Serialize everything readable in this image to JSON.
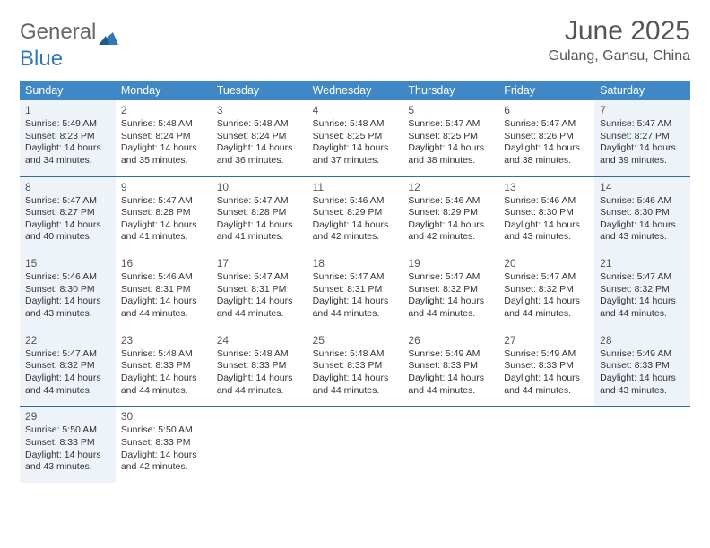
{
  "logo": {
    "text1": "General",
    "text2": "Blue"
  },
  "title": "June 2025",
  "location": "Gulang, Gansu, China",
  "colors": {
    "header_bg": "#3f88c5",
    "header_text": "#ffffff",
    "row_border": "#2e6ea3",
    "shaded_bg": "#edf3f8",
    "text": "#333333",
    "muted": "#555555"
  },
  "weekdays": [
    "Sunday",
    "Monday",
    "Tuesday",
    "Wednesday",
    "Thursday",
    "Friday",
    "Saturday"
  ],
  "weeks": [
    [
      {
        "n": "1",
        "shaded": true,
        "sr": "Sunrise: 5:49 AM",
        "ss": "Sunset: 8:23 PM",
        "d1": "Daylight: 14 hours",
        "d2": "and 34 minutes."
      },
      {
        "n": "2",
        "sr": "Sunrise: 5:48 AM",
        "ss": "Sunset: 8:24 PM",
        "d1": "Daylight: 14 hours",
        "d2": "and 35 minutes."
      },
      {
        "n": "3",
        "sr": "Sunrise: 5:48 AM",
        "ss": "Sunset: 8:24 PM",
        "d1": "Daylight: 14 hours",
        "d2": "and 36 minutes."
      },
      {
        "n": "4",
        "sr": "Sunrise: 5:48 AM",
        "ss": "Sunset: 8:25 PM",
        "d1": "Daylight: 14 hours",
        "d2": "and 37 minutes."
      },
      {
        "n": "5",
        "sr": "Sunrise: 5:47 AM",
        "ss": "Sunset: 8:25 PM",
        "d1": "Daylight: 14 hours",
        "d2": "and 38 minutes."
      },
      {
        "n": "6",
        "sr": "Sunrise: 5:47 AM",
        "ss": "Sunset: 8:26 PM",
        "d1": "Daylight: 14 hours",
        "d2": "and 38 minutes."
      },
      {
        "n": "7",
        "shaded": true,
        "sr": "Sunrise: 5:47 AM",
        "ss": "Sunset: 8:27 PM",
        "d1": "Daylight: 14 hours",
        "d2": "and 39 minutes."
      }
    ],
    [
      {
        "n": "8",
        "shaded": true,
        "sr": "Sunrise: 5:47 AM",
        "ss": "Sunset: 8:27 PM",
        "d1": "Daylight: 14 hours",
        "d2": "and 40 minutes."
      },
      {
        "n": "9",
        "sr": "Sunrise: 5:47 AM",
        "ss": "Sunset: 8:28 PM",
        "d1": "Daylight: 14 hours",
        "d2": "and 41 minutes."
      },
      {
        "n": "10",
        "sr": "Sunrise: 5:47 AM",
        "ss": "Sunset: 8:28 PM",
        "d1": "Daylight: 14 hours",
        "d2": "and 41 minutes."
      },
      {
        "n": "11",
        "sr": "Sunrise: 5:46 AM",
        "ss": "Sunset: 8:29 PM",
        "d1": "Daylight: 14 hours",
        "d2": "and 42 minutes."
      },
      {
        "n": "12",
        "sr": "Sunrise: 5:46 AM",
        "ss": "Sunset: 8:29 PM",
        "d1": "Daylight: 14 hours",
        "d2": "and 42 minutes."
      },
      {
        "n": "13",
        "sr": "Sunrise: 5:46 AM",
        "ss": "Sunset: 8:30 PM",
        "d1": "Daylight: 14 hours",
        "d2": "and 43 minutes."
      },
      {
        "n": "14",
        "shaded": true,
        "sr": "Sunrise: 5:46 AM",
        "ss": "Sunset: 8:30 PM",
        "d1": "Daylight: 14 hours",
        "d2": "and 43 minutes."
      }
    ],
    [
      {
        "n": "15",
        "shaded": true,
        "sr": "Sunrise: 5:46 AM",
        "ss": "Sunset: 8:30 PM",
        "d1": "Daylight: 14 hours",
        "d2": "and 43 minutes."
      },
      {
        "n": "16",
        "sr": "Sunrise: 5:46 AM",
        "ss": "Sunset: 8:31 PM",
        "d1": "Daylight: 14 hours",
        "d2": "and 44 minutes."
      },
      {
        "n": "17",
        "sr": "Sunrise: 5:47 AM",
        "ss": "Sunset: 8:31 PM",
        "d1": "Daylight: 14 hours",
        "d2": "and 44 minutes."
      },
      {
        "n": "18",
        "sr": "Sunrise: 5:47 AM",
        "ss": "Sunset: 8:31 PM",
        "d1": "Daylight: 14 hours",
        "d2": "and 44 minutes."
      },
      {
        "n": "19",
        "sr": "Sunrise: 5:47 AM",
        "ss": "Sunset: 8:32 PM",
        "d1": "Daylight: 14 hours",
        "d2": "and 44 minutes."
      },
      {
        "n": "20",
        "sr": "Sunrise: 5:47 AM",
        "ss": "Sunset: 8:32 PM",
        "d1": "Daylight: 14 hours",
        "d2": "and 44 minutes."
      },
      {
        "n": "21",
        "shaded": true,
        "sr": "Sunrise: 5:47 AM",
        "ss": "Sunset: 8:32 PM",
        "d1": "Daylight: 14 hours",
        "d2": "and 44 minutes."
      }
    ],
    [
      {
        "n": "22",
        "shaded": true,
        "sr": "Sunrise: 5:47 AM",
        "ss": "Sunset: 8:32 PM",
        "d1": "Daylight: 14 hours",
        "d2": "and 44 minutes."
      },
      {
        "n": "23",
        "sr": "Sunrise: 5:48 AM",
        "ss": "Sunset: 8:33 PM",
        "d1": "Daylight: 14 hours",
        "d2": "and 44 minutes."
      },
      {
        "n": "24",
        "sr": "Sunrise: 5:48 AM",
        "ss": "Sunset: 8:33 PM",
        "d1": "Daylight: 14 hours",
        "d2": "and 44 minutes."
      },
      {
        "n": "25",
        "sr": "Sunrise: 5:48 AM",
        "ss": "Sunset: 8:33 PM",
        "d1": "Daylight: 14 hours",
        "d2": "and 44 minutes."
      },
      {
        "n": "26",
        "sr": "Sunrise: 5:49 AM",
        "ss": "Sunset: 8:33 PM",
        "d1": "Daylight: 14 hours",
        "d2": "and 44 minutes."
      },
      {
        "n": "27",
        "sr": "Sunrise: 5:49 AM",
        "ss": "Sunset: 8:33 PM",
        "d1": "Daylight: 14 hours",
        "d2": "and 44 minutes."
      },
      {
        "n": "28",
        "shaded": true,
        "sr": "Sunrise: 5:49 AM",
        "ss": "Sunset: 8:33 PM",
        "d1": "Daylight: 14 hours",
        "d2": "and 43 minutes."
      }
    ],
    [
      {
        "n": "29",
        "shaded": true,
        "sr": "Sunrise: 5:50 AM",
        "ss": "Sunset: 8:33 PM",
        "d1": "Daylight: 14 hours",
        "d2": "and 43 minutes."
      },
      {
        "n": "30",
        "sr": "Sunrise: 5:50 AM",
        "ss": "Sunset: 8:33 PM",
        "d1": "Daylight: 14 hours",
        "d2": "and 42 minutes."
      },
      null,
      null,
      null,
      null,
      null
    ]
  ]
}
